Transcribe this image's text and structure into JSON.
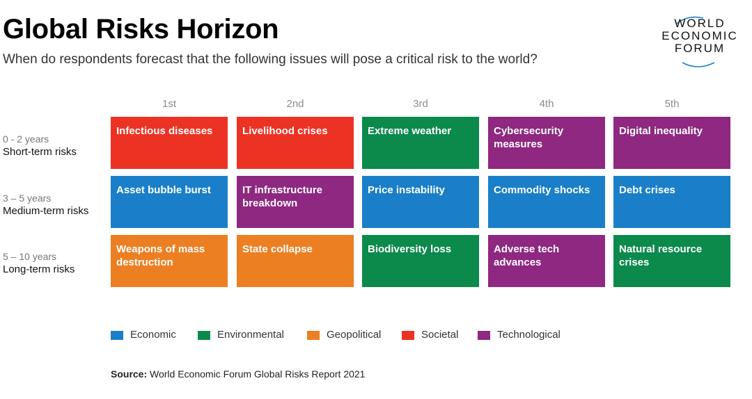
{
  "header": {
    "title": "Global Risks Horizon",
    "subtitle": "When do respondents forecast that the following issues will pose a critical risk to the world?"
  },
  "logo": {
    "lines": [
      "WORLD",
      "ECONOMIC",
      "FORUM"
    ]
  },
  "colors": {
    "Economic": "#1a7fc8",
    "Environmental": "#0b8a4c",
    "Geopolitical": "#ec7f22",
    "Societal": "#ec3323",
    "Technological": "#8e2880"
  },
  "chart_data": {
    "type": "table",
    "title": "Global Risks Horizon",
    "subtitle": "When do respondents forecast that the following issues will pose a critical risk to the world?",
    "columns": [
      "1st",
      "2nd",
      "3rd",
      "4th",
      "5th"
    ],
    "rows": [
      {
        "years": "0 - 2 years",
        "label": "Short-term risks",
        "cells": [
          {
            "text": "Infectious diseases",
            "category": "Societal"
          },
          {
            "text": "Livelihood crises",
            "category": "Societal"
          },
          {
            "text": "Extreme weather",
            "category": "Environmental"
          },
          {
            "text": "Cybersecurity measures",
            "category": "Technological"
          },
          {
            "text": "Digital inequality",
            "category": "Technological"
          }
        ]
      },
      {
        "years": "3 – 5 years",
        "label": "Medium-term risks",
        "cells": [
          {
            "text": "Asset bubble burst",
            "category": "Economic"
          },
          {
            "text": "IT infrastructure breakdown",
            "category": "Technological"
          },
          {
            "text": "Price instability",
            "category": "Economic"
          },
          {
            "text": "Commodity shocks",
            "category": "Economic"
          },
          {
            "text": "Debt crises",
            "category": "Economic"
          }
        ]
      },
      {
        "years": "5 – 10 years",
        "label": "Long-term risks",
        "cells": [
          {
            "text": "Weapons of mass destruction",
            "category": "Geopolitical"
          },
          {
            "text": "State collapse",
            "category": "Geopolitical"
          },
          {
            "text": "Biodiversity loss",
            "category": "Environmental"
          },
          {
            "text": "Adverse tech advances",
            "category": "Technological"
          },
          {
            "text": "Natural resource crises",
            "category": "Environmental"
          }
        ]
      }
    ],
    "legend": [
      "Economic",
      "Environmental",
      "Geopolitical",
      "Societal",
      "Technological"
    ]
  },
  "source": {
    "label": "Source:",
    "text": " World Economic Forum Global Risks Report 2021"
  }
}
